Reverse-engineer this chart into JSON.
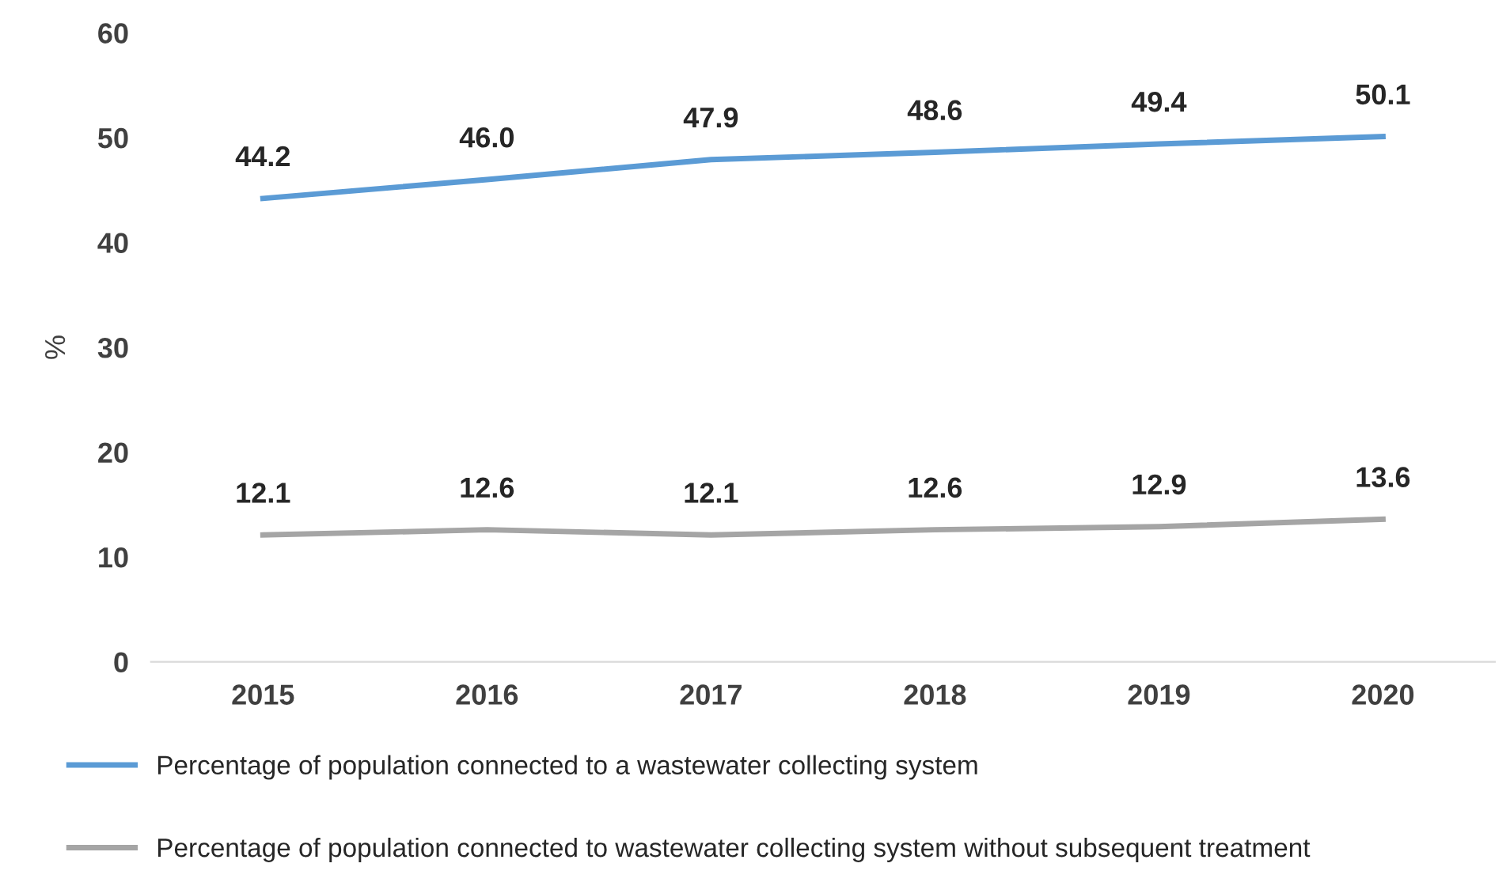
{
  "chart_data": {
    "type": "line",
    "ylabel": "%",
    "categories": [
      "2015",
      "2016",
      "2017",
      "2018",
      "2019",
      "2020"
    ],
    "series": [
      {
        "name": "Percentage of population connected to a wastewater collecting system",
        "color": "#5b9bd5",
        "values": [
          44.2,
          46.0,
          47.9,
          48.6,
          49.4,
          50.1
        ],
        "value_labels": [
          "44.2",
          "46.0",
          "47.9",
          "48.6",
          "49.4",
          "50.1"
        ]
      },
      {
        "name": "Percentage of population connected to wastewater collecting system without subsequent treatment",
        "color": "#a5a5a5",
        "values": [
          12.1,
          12.6,
          12.1,
          12.6,
          12.9,
          13.6
        ],
        "value_labels": [
          "12.1",
          "12.6",
          "12.1",
          "12.6",
          "12.9",
          "13.6"
        ]
      }
    ],
    "ylim": [
      0,
      60
    ],
    "yticks": [
      0,
      10,
      20,
      30,
      40,
      50,
      60
    ],
    "grid": false,
    "legend": "bottom",
    "marker": "none",
    "line_style": "solid"
  }
}
